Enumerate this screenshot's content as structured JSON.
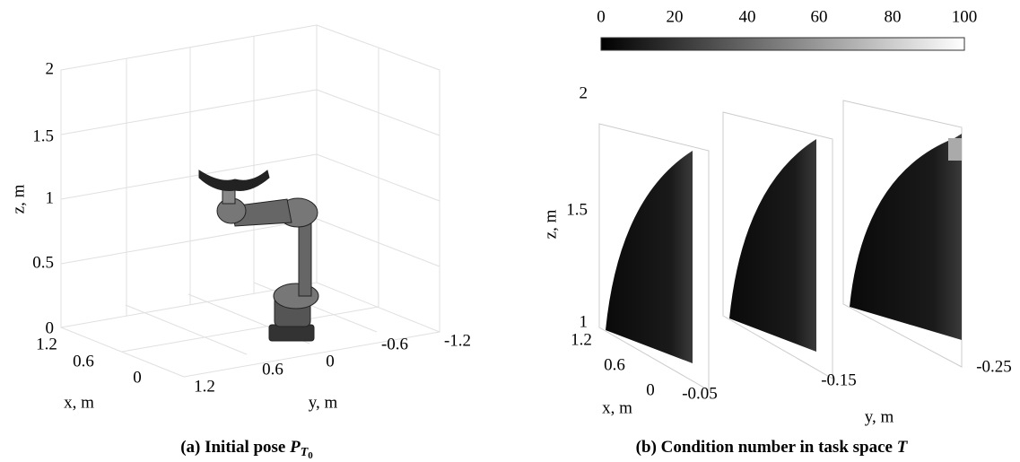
{
  "panels": [
    {
      "caption": "(a) Initial pose",
      "symbol": "P",
      "subscript": "T",
      "sub_subscript": "0",
      "z_label": "z, m",
      "x_label": "x, m",
      "y_label": "y, m",
      "z_ticks": [
        "2",
        "1.5",
        "1",
        "0.5",
        "0"
      ],
      "x_ticks": [
        "1.2",
        "0.6",
        "0"
      ],
      "y_ticks": [
        "1.2",
        "0.6",
        "0",
        "-0.6",
        "-1.2"
      ]
    },
    {
      "caption": "(b) Condition number in task space",
      "symbol": "T",
      "z_label": "z, m",
      "x_label": "x, m",
      "y_label": "y, m",
      "colorbar_ticks": [
        "0",
        "20",
        "40",
        "60",
        "80",
        "100"
      ],
      "z_ticks": [
        "2",
        "1.5",
        "1"
      ],
      "x_ticks": [
        "1.2",
        "0.6",
        "0"
      ],
      "y_ticks": [
        "-0.05",
        "-0.15",
        "-0.25"
      ]
    }
  ]
}
